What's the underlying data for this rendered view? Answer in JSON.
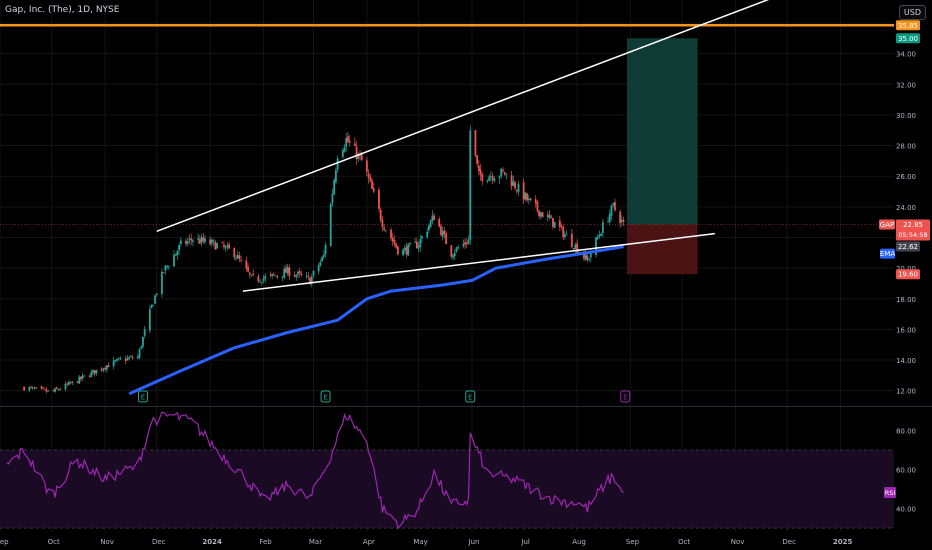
{
  "header": {
    "symbol_title": "Gap, Inc. (The), 1D, NYSE",
    "currency": "USD"
  },
  "colors": {
    "background": "#000000",
    "candle_up": "#26a69a",
    "candle_down": "#ef5350",
    "ema": "#2962ff",
    "resistance": "#f7931a",
    "trendline": "#ffffff",
    "rsi": "#9c27b0",
    "target_zone": "#0e3b34",
    "stop_zone": "#4b1313"
  },
  "chart_data": [
    {
      "type": "candlestick",
      "name": "price",
      "title": "Gap, Inc. (The), 1D, NYSE",
      "ylim": [
        11.0,
        37.5
      ],
      "y_ticks": [
        12.0,
        14.0,
        16.0,
        18.0,
        20.0,
        22.0,
        24.0,
        26.0,
        28.0,
        30.0,
        32.0,
        34.0,
        36.0
      ],
      "x_ticks": [
        "Sep",
        "Oct",
        "Nov",
        "Dec",
        "2024",
        "Feb",
        "Mar",
        "Apr",
        "May",
        "Jun",
        "Jul",
        "Aug",
        "Sep",
        "Oct",
        "Nov",
        "Dec",
        "2025"
      ],
      "close_path": [
        [
          "2023-09-15",
          12.2
        ],
        [
          "2023-10-01",
          11.9
        ],
        [
          "2023-10-15",
          12.6
        ],
        [
          "2023-11-01",
          13.6
        ],
        [
          "2023-11-10",
          14.0
        ],
        [
          "2023-11-20",
          14.2
        ],
        [
          "2023-11-28",
          17.5
        ],
        [
          "2023-12-05",
          19.8
        ],
        [
          "2023-12-15",
          21.5
        ],
        [
          "2023-12-22",
          21.9
        ],
        [
          "2024-01-05",
          21.5
        ],
        [
          "2024-01-15",
          21.0
        ],
        [
          "2024-01-25",
          19.3
        ],
        [
          "2024-02-05",
          19.4
        ],
        [
          "2024-02-15",
          19.8
        ],
        [
          "2024-02-28",
          19.2
        ],
        [
          "2024-03-07",
          20.8
        ],
        [
          "2024-03-15",
          27.5
        ],
        [
          "2024-03-20",
          28.4
        ],
        [
          "2024-03-30",
          26.8
        ],
        [
          "2024-04-10",
          23.0
        ],
        [
          "2024-04-20",
          21.0
        ],
        [
          "2024-05-01",
          21.6
        ],
        [
          "2024-05-10",
          23.4
        ],
        [
          "2024-05-20",
          21.0
        ],
        [
          "2024-05-30",
          21.8
        ],
        [
          "2024-05-31",
          29.0
        ],
        [
          "2024-06-05",
          26.0
        ],
        [
          "2024-06-20",
          26.2
        ],
        [
          "2024-07-05",
          24.2
        ],
        [
          "2024-07-20",
          22.8
        ],
        [
          "2024-08-01",
          21.3
        ],
        [
          "2024-08-07",
          20.5
        ],
        [
          "2024-08-15",
          22.5
        ],
        [
          "2024-08-22",
          24.0
        ],
        [
          "2024-08-28",
          22.85
        ]
      ],
      "ema": [
        [
          "2023-11-15",
          11.8
        ],
        [
          "2023-12-15",
          13.3
        ],
        [
          "2024-01-15",
          14.8
        ],
        [
          "2024-02-15",
          15.8
        ],
        [
          "2024-03-15",
          16.6
        ],
        [
          "2024-04-01",
          18.0
        ],
        [
          "2024-04-15",
          18.5
        ],
        [
          "2024-05-15",
          18.9
        ],
        [
          "2024-06-01",
          19.2
        ],
        [
          "2024-06-15",
          20.0
        ],
        [
          "2024-07-15",
          20.6
        ],
        [
          "2024-08-01",
          20.9
        ],
        [
          "2024-08-28",
          21.4
        ]
      ],
      "trendlines": [
        {
          "name": "upper-trendline",
          "from": [
            "2023-12-01",
            22.4
          ],
          "to": [
            "2024-12-01",
            38.0
          ]
        },
        {
          "name": "lower-trendline",
          "from": [
            "2024-01-20",
            18.5
          ],
          "to": [
            "2024-10-20",
            22.25
          ]
        }
      ],
      "resistance_level": 35.85,
      "position": {
        "entry": 22.85,
        "target": 35.0,
        "stop": 19.6
      },
      "earnings_markers": [
        "E",
        "E",
        "E",
        "E"
      ],
      "price_labels": [
        {
          "text": "35.85",
          "value": 35.85,
          "color": "#f7931a"
        },
        {
          "text": "35.00",
          "value": 35.0,
          "color": "#089981"
        },
        {
          "text": "GAP",
          "value": 22.85,
          "color": "#ef5350"
        },
        {
          "text": "22.85",
          "value": 22.85,
          "color": "#ef5350"
        },
        {
          "text": "05:54:58",
          "value": 22.85,
          "color": "#ef5350"
        },
        {
          "text": "22.62",
          "value": 22.62,
          "color": "#434651"
        },
        {
          "text": "EMA",
          "value": 21.4,
          "color": "#2962ff"
        },
        {
          "text": "19.60",
          "value": 19.6,
          "color": "#ef5350"
        }
      ]
    },
    {
      "type": "line",
      "name": "RSI",
      "ylim": [
        28,
        92
      ],
      "y_ticks": [
        40.0,
        60.0,
        80.0
      ],
      "bands": [
        30,
        70
      ],
      "label": "RSI",
      "values": [
        [
          "2023-09-05",
          62
        ],
        [
          "2023-09-15",
          70
        ],
        [
          "2023-10-01",
          46
        ],
        [
          "2023-10-15",
          65
        ],
        [
          "2023-11-01",
          55
        ],
        [
          "2023-11-20",
          62
        ],
        [
          "2023-11-28",
          85
        ],
        [
          "2023-12-10",
          88
        ],
        [
          "2023-12-22",
          84
        ],
        [
          "2024-01-05",
          70
        ],
        [
          "2024-01-20",
          57
        ],
        [
          "2024-02-01",
          44
        ],
        [
          "2024-02-15",
          52
        ],
        [
          "2024-02-28",
          45
        ],
        [
          "2024-03-10",
          65
        ],
        [
          "2024-03-20",
          88
        ],
        [
          "2024-04-01",
          75
        ],
        [
          "2024-04-10",
          40
        ],
        [
          "2024-04-20",
          32
        ],
        [
          "2024-05-01",
          40
        ],
        [
          "2024-05-10",
          58
        ],
        [
          "2024-05-20",
          42
        ],
        [
          "2024-05-30",
          44
        ],
        [
          "2024-05-31",
          78
        ],
        [
          "2024-06-10",
          58
        ],
        [
          "2024-06-25",
          55
        ],
        [
          "2024-07-10",
          48
        ],
        [
          "2024-07-20",
          44
        ],
        [
          "2024-08-01",
          43
        ],
        [
          "2024-08-07",
          40
        ],
        [
          "2024-08-15",
          50
        ],
        [
          "2024-08-22",
          57
        ],
        [
          "2024-08-28",
          47
        ]
      ]
    }
  ]
}
